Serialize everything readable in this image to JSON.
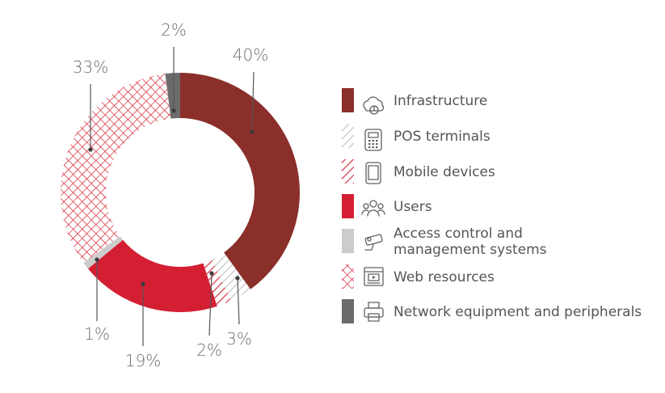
{
  "chart_data": {
    "type": "pie",
    "variant": "donut",
    "categories": [
      "Infrastructure",
      "POS terminals",
      "Mobile devices",
      "Users",
      "Access control and management systems",
      "Web resources",
      "Network equipment and peripherals"
    ],
    "values": [
      40,
      3,
      2,
      19,
      1,
      33,
      2
    ],
    "value_labels": [
      "40%",
      "3%",
      "2%",
      "19%",
      "1%",
      "33%",
      "2%"
    ],
    "legend_lines": [
      [
        "Infrastructure"
      ],
      [
        "POS terminals"
      ],
      [
        "Mobile devices"
      ],
      [
        "Users"
      ],
      [
        "Access control and",
        "management systems"
      ],
      [
        "Web resources"
      ],
      [
        "Network equipment and peripherals"
      ]
    ],
    "icons": [
      "cloud-icon",
      "pos-terminal-icon",
      "tablet-icon",
      "users-icon",
      "camera-icon",
      "browser-icon",
      "printer-icon"
    ],
    "fills": [
      "solid",
      "light-hatch",
      "red-hatch",
      "solid",
      "solid",
      "crosshatch",
      "solid"
    ],
    "colors": [
      "#8b2f2b",
      "#cfcfcf",
      "#d52235",
      "#d41f33",
      "#cccccc",
      "#d52235",
      "#6b6b6b"
    ],
    "legend_position": "right",
    "title": "",
    "start_angle_deg": 0,
    "direction": "clockwise"
  }
}
